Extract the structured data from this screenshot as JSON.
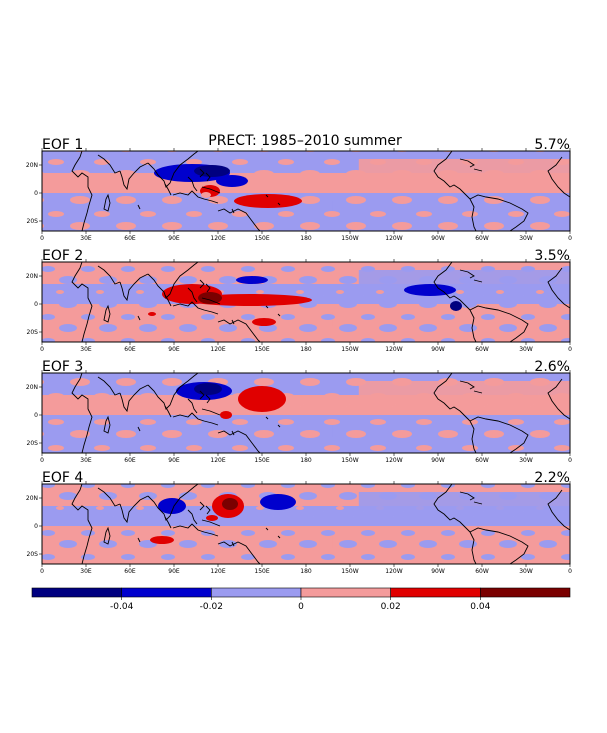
{
  "figure": {
    "main_title": "PRECT: 1985–2010 summer"
  },
  "colors": {
    "c1": "#000080",
    "c2": "#0000cd",
    "c3": "#9b9bf0",
    "c4": "#f49b9b",
    "c5": "#e00000",
    "c6": "#7a0000",
    "coast": "#000000"
  },
  "panels": [
    {
      "label": "EOF 1",
      "variance": "5.7%"
    },
    {
      "label": "EOF 2",
      "variance": "3.5%"
    },
    {
      "label": "EOF 3",
      "variance": "2.6%"
    },
    {
      "label": "EOF 4",
      "variance": "2.2%"
    }
  ],
  "lon_ticks": [
    "0",
    "30E",
    "60E",
    "90E",
    "120E",
    "150E",
    "180",
    "150W",
    "120W",
    "90W",
    "60W",
    "30W",
    "0"
  ],
  "lat_ticks": [
    "20N",
    "0",
    "20S"
  ],
  "colorbar": {
    "ticks": [
      "-0.04",
      "-0.02",
      "0",
      "0.02",
      "0.04"
    ],
    "levels": [
      -0.06,
      -0.04,
      -0.02,
      0,
      0.02,
      0.04,
      0.06
    ]
  },
  "chart_data": {
    "type": "heatmap",
    "title": "PRECT: 1985–2010 summer",
    "panels": [
      {
        "name": "EOF 1",
        "variance_percent": 5.7
      },
      {
        "name": "EOF 2",
        "variance_percent": 3.5
      },
      {
        "name": "EOF 3",
        "variance_percent": 2.6
      },
      {
        "name": "EOF 4",
        "variance_percent": 2.2
      }
    ],
    "x_axis": {
      "unit": "longitude",
      "range": [
        "0",
        "0"
      ],
      "ticks": [
        "0",
        "30E",
        "60E",
        "90E",
        "120E",
        "150E",
        "180",
        "150W",
        "120W",
        "90W",
        "60W",
        "30W",
        "0"
      ]
    },
    "y_axis": {
      "unit": "latitude",
      "ticks": [
        "20N",
        "0",
        "20S"
      ]
    },
    "color_levels": [
      -0.06,
      -0.04,
      -0.02,
      0,
      0.02,
      0.04,
      0.06
    ]
  }
}
